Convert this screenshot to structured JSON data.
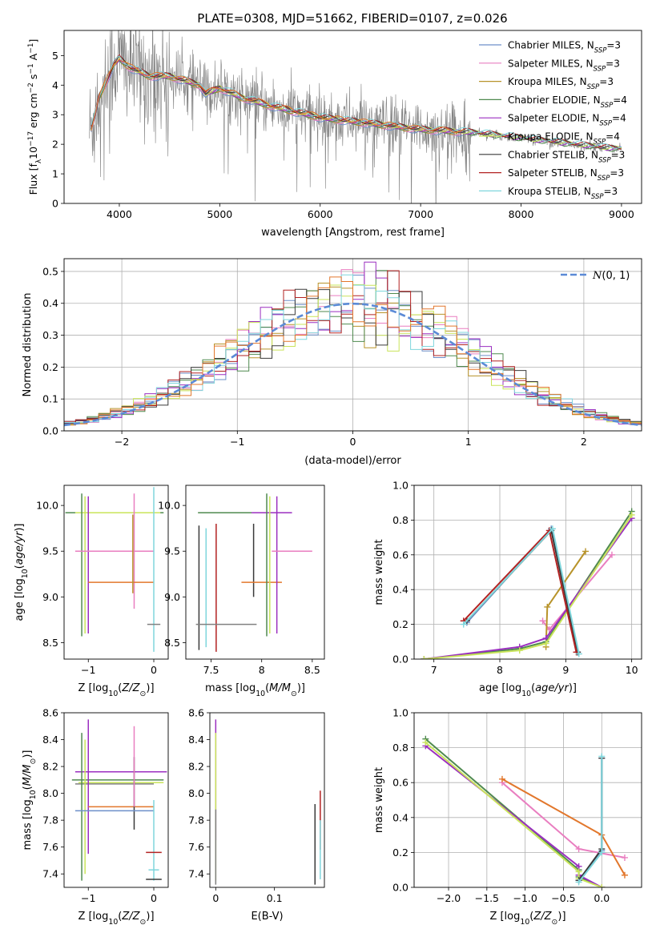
{
  "figure": {
    "title": "PLATE=0308, MJD=51662, FIBERID=0107, z=0.026"
  },
  "series_colors": {
    "Chabrier MILES": "#6d8fc9",
    "Salpeter MILES": "#e97ec0",
    "Kroupa MILES": "#b8932a",
    "Chabrier ELODIE": "#4f8a4f",
    "Salpeter ELODIE": "#9b2fc0",
    "Kroupa ELODIE": "#c9e45a",
    "Chabrier STELIB": "#3a3a3a",
    "Salpeter STELIB": "#b22222",
    "Kroupa STELIB": "#7fd6dc",
    "Kroupa ELODIE alt": "#e2772c"
  },
  "chart_data": [
    {
      "id": "spectrum",
      "type": "line",
      "xlabel": "wavelength [Angstrom, rest frame]",
      "ylabel": "Flux [f_λ 10^-17 erg cm^-2 s^-1 A^-1]",
      "xlim": [
        3450,
        9200
      ],
      "ylim": [
        0,
        5.85
      ],
      "xticks": [
        4000,
        5000,
        6000,
        7000,
        8000,
        9000
      ],
      "yticks": [
        0,
        1,
        2,
        3,
        4,
        5
      ],
      "grid": false,
      "legend_position": "top-right",
      "legend": [
        {
          "name": "Chabrier MILES",
          "sub": "SSP",
          "n": "3",
          "color": "#6d8fc9"
        },
        {
          "name": "Salpeter MILES",
          "sub": "SSP",
          "n": "3",
          "color": "#e97ec0"
        },
        {
          "name": "Kroupa MILES",
          "sub": "SSP",
          "n": "3",
          "color": "#b8932a"
        },
        {
          "name": "Chabrier ELODIE",
          "sub": "SSP",
          "n": "4",
          "color": "#4f8a4f"
        },
        {
          "name": "Salpeter ELODIE",
          "sub": "SSP",
          "n": "4",
          "color": "#9b2fc0"
        },
        {
          "name": "Kroupa ELODIE",
          "sub": "SSP",
          "n": "4",
          "color": "#c9e45a"
        },
        {
          "name": "Chabrier STELIB",
          "sub": "SSP",
          "n": "3",
          "color": "#3a3a3a"
        },
        {
          "name": "Salpeter STELIB",
          "sub": "SSP",
          "n": "3",
          "color": "#b22222"
        },
        {
          "name": "Kroupa STELIB",
          "sub": "SSP",
          "n": "3",
          "color": "#7fd6dc"
        }
      ],
      "continuum_knots": [
        [
          3720,
          2.5
        ],
        [
          3800,
          3.6
        ],
        [
          3950,
          4.7
        ],
        [
          4000,
          4.9
        ],
        [
          4100,
          4.6
        ],
        [
          4300,
          4.3
        ],
        [
          4500,
          4.3
        ],
        [
          4800,
          4.0
        ],
        [
          4860,
          3.7
        ],
        [
          5000,
          3.9
        ],
        [
          5200,
          3.6
        ],
        [
          5500,
          3.3
        ],
        [
          6000,
          2.9
        ],
        [
          6500,
          2.7
        ],
        [
          7000,
          2.5
        ],
        [
          7500,
          2.4
        ],
        [
          8000,
          2.2
        ],
        [
          8500,
          2.0
        ],
        [
          8900,
          1.85
        ]
      ],
      "data_color": "#808080",
      "data_x_range": [
        3700,
        9000
      ]
    },
    {
      "id": "residuals",
      "type": "area",
      "xlabel": "(data-model)/error",
      "ylabel": "Normed distribution",
      "xlim": [
        -2.5,
        2.5
      ],
      "ylim": [
        0,
        0.54
      ],
      "xticks": [
        -2,
        -1,
        0,
        1,
        2
      ],
      "yticks": [
        0.0,
        0.1,
        0.2,
        0.3,
        0.4,
        0.5
      ],
      "grid": true,
      "legend_position": "top-right",
      "legend": [
        {
          "name": "N(0,1)",
          "color": "#5b8ad6",
          "style": "dashed"
        }
      ],
      "bin_width": 0.1
    },
    {
      "id": "age_vs_Z",
      "type": "scatter",
      "xlabel": "Z [log10(Z/Z⊙)]",
      "ylabel": "age  [log10(age/yr)]",
      "xlim": [
        -1.37,
        0.22
      ],
      "ylim": [
        8.32,
        10.22
      ],
      "xticks": [
        -1,
        0
      ],
      "yticks": [
        8.5,
        9.0,
        9.5,
        10.0
      ],
      "grid": false,
      "points": [
        {
          "x": -0.6,
          "y": 9.92,
          "xerr": 0.75,
          "yerr": 0,
          "color": "#4f8a4f"
        },
        {
          "x": -0.55,
          "y": 9.92,
          "xerr": 0.65,
          "yerr": 0,
          "color": "#c9e45a"
        },
        {
          "x": -1.1,
          "y": 9.35,
          "xerr": 0,
          "yerr": 0.78,
          "color": "#4f8a4f"
        },
        {
          "x": -1.05,
          "y": 9.35,
          "xerr": 0,
          "yerr": 0.75,
          "color": "#c9e45a"
        },
        {
          "x": -1.0,
          "y": 9.35,
          "xerr": 0,
          "yerr": 0.75,
          "color": "#9b2fc0"
        },
        {
          "x": -0.6,
          "y": 9.5,
          "xerr": 0.6,
          "yerr": 0,
          "color": "#e97ec0"
        },
        {
          "x": -0.3,
          "y": 9.5,
          "xerr": 0,
          "yerr": 0.63,
          "color": "#e97ec0"
        },
        {
          "x": -0.5,
          "y": 9.16,
          "xerr": 0.5,
          "yerr": 0,
          "color": "#e2772c"
        },
        {
          "x": -0.32,
          "y": 9.47,
          "xerr": 0,
          "yerr": 0.43,
          "color": "#b8932a"
        },
        {
          "x": 0.0,
          "y": 9.3,
          "xerr": 0,
          "yerr": 0.9,
          "color": "#7fd6dc"
        },
        {
          "x": 0.0,
          "y": 8.7,
          "xerr": 0.1,
          "yerr": 0,
          "color": "#808080"
        }
      ]
    },
    {
      "id": "age_vs_mass",
      "type": "scatter",
      "xlabel": "mass [log10(M/M⊙)]",
      "ylabel": "",
      "xlim": [
        7.25,
        8.62
      ],
      "ylim": [
        8.32,
        10.22
      ],
      "xticks": [
        7.5,
        8.0,
        8.5
      ],
      "yticks": [
        8.5,
        9.0,
        9.5,
        10.0
      ],
      "grid": false,
      "points": [
        {
          "x": 7.65,
          "y": 9.92,
          "xerr": 0.28,
          "yerr": 0,
          "color": "#4f8a4f"
        },
        {
          "x": 8.1,
          "y": 9.92,
          "xerr": 0.2,
          "yerr": 0,
          "color": "#9b2fc0"
        },
        {
          "x": 7.38,
          "y": 9.1,
          "xerr": 0,
          "yerr": 0.68,
          "color": "#3a3a3a"
        },
        {
          "x": 7.45,
          "y": 9.1,
          "xerr": 0,
          "yerr": 0.65,
          "color": "#7fd6dc"
        },
        {
          "x": 7.55,
          "y": 9.1,
          "xerr": 0,
          "yerr": 0.7,
          "color": "#b22222"
        },
        {
          "x": 7.65,
          "y": 8.7,
          "xerr": 0.3,
          "yerr": 0,
          "color": "#808080"
        },
        {
          "x": 7.92,
          "y": 9.4,
          "xerr": 0,
          "yerr": 0.4,
          "color": "#3a3a3a"
        },
        {
          "x": 8.0,
          "y": 9.16,
          "xerr": 0.2,
          "yerr": 0,
          "color": "#e2772c"
        },
        {
          "x": 8.05,
          "y": 9.35,
          "xerr": 0,
          "yerr": 0.78,
          "color": "#4f8a4f"
        },
        {
          "x": 8.08,
          "y": 9.35,
          "xerr": 0,
          "yerr": 0.75,
          "color": "#c9e45a"
        },
        {
          "x": 8.15,
          "y": 9.35,
          "xerr": 0,
          "yerr": 0.75,
          "color": "#9b2fc0"
        },
        {
          "x": 8.3,
          "y": 9.5,
          "xerr": 0.2,
          "yerr": 0,
          "color": "#e97ec0"
        }
      ]
    },
    {
      "id": "weight_vs_age",
      "type": "line",
      "xlabel": "age  [log10(age/yr)]",
      "ylabel": "mass weight",
      "xlim": [
        6.7,
        10.15
      ],
      "ylim": [
        0,
        1.0
      ],
      "xticks": [
        7,
        8,
        9,
        10
      ],
      "yticks": [
        0.0,
        0.2,
        0.4,
        0.6,
        0.8,
        1.0
      ],
      "grid": true,
      "series": [
        {
          "name": "Chabrier MILES",
          "color": "#6d8fc9",
          "x": [
            7.5,
            8.78,
            9.18
          ],
          "y": [
            0.21,
            0.75,
            0.04
          ]
        },
        {
          "name": "Salpeter MILES",
          "color": "#e97ec0",
          "x": [
            8.65,
            8.75,
            9.7
          ],
          "y": [
            0.22,
            0.17,
            0.6
          ]
        },
        {
          "name": "Kroupa MILES",
          "color": "#b8932a",
          "x": [
            8.7,
            8.72,
            9.3
          ],
          "y": [
            0.07,
            0.3,
            0.62
          ]
        },
        {
          "name": "Chabrier ELODIE",
          "color": "#4f8a4f",
          "x": [
            6.85,
            8.3,
            8.7,
            10.0
          ],
          "y": [
            0.0,
            0.06,
            0.1,
            0.85
          ]
        },
        {
          "name": "Salpeter ELODIE",
          "color": "#9b2fc0",
          "x": [
            6.85,
            8.3,
            8.7,
            10.0
          ],
          "y": [
            0.0,
            0.07,
            0.12,
            0.81
          ]
        },
        {
          "name": "Kroupa ELODIE",
          "color": "#c9e45a",
          "x": [
            6.85,
            8.3,
            8.7,
            10.0
          ],
          "y": [
            0.0,
            0.05,
            0.09,
            0.83
          ]
        },
        {
          "name": "Chabrier STELIB",
          "color": "#3a3a3a",
          "x": [
            7.5,
            8.78,
            9.18
          ],
          "y": [
            0.22,
            0.74,
            0.04
          ]
        },
        {
          "name": "Salpeter STELIB",
          "color": "#b22222",
          "x": [
            7.45,
            8.75,
            9.16
          ],
          "y": [
            0.22,
            0.74,
            0.04
          ]
        },
        {
          "name": "Kroupa STELIB",
          "color": "#7fd6dc",
          "x": [
            7.45,
            8.8,
            9.2
          ],
          "y": [
            0.2,
            0.75,
            0.03
          ]
        }
      ]
    },
    {
      "id": "mass_vs_Z",
      "type": "scatter",
      "xlabel": "Z [log10(Z/Z⊙)]",
      "ylabel": "mass [log10(M/M⊙)]",
      "xlim": [
        -1.37,
        0.22
      ],
      "ylim": [
        7.3,
        8.6
      ],
      "xticks": [
        -1,
        0
      ],
      "yticks": [
        7.4,
        7.6,
        7.8,
        8.0,
        8.2,
        8.4,
        8.6
      ],
      "grid": false,
      "points": [
        {
          "x": -0.5,
          "y": 8.16,
          "xerr": 0.7,
          "yerr": 0,
          "color": "#9b2fc0"
        },
        {
          "x": -0.55,
          "y": 8.1,
          "xerr": 0.7,
          "yerr": 0,
          "color": "#4f8a4f"
        },
        {
          "x": -0.5,
          "y": 8.08,
          "xerr": 0.65,
          "yerr": 0,
          "color": "#c9e45a"
        },
        {
          "x": -0.6,
          "y": 8.07,
          "xerr": 0.6,
          "yerr": 0,
          "color": "#808080"
        },
        {
          "x": -1.1,
          "y": 7.9,
          "xerr": 0,
          "yerr": 0.55,
          "color": "#4f8a4f"
        },
        {
          "x": -1.05,
          "y": 7.9,
          "xerr": 0,
          "yerr": 0.5,
          "color": "#c9e45a"
        },
        {
          "x": -1.0,
          "y": 8.05,
          "xerr": 0,
          "yerr": 0.5,
          "color": "#9b2fc0"
        },
        {
          "x": -0.5,
          "y": 7.9,
          "xerr": 0.5,
          "yerr": 0,
          "color": "#e2772c"
        },
        {
          "x": -0.3,
          "y": 8.0,
          "xerr": 0,
          "yerr": 0.27,
          "color": "#3a3a3a"
        },
        {
          "x": -0.3,
          "y": 8.2,
          "xerr": 0,
          "yerr": 0.3,
          "color": "#e97ec0"
        },
        {
          "x": -0.6,
          "y": 7.87,
          "xerr": 0.6,
          "yerr": 0,
          "color": "#6d8fc9"
        },
        {
          "x": 0.0,
          "y": 7.65,
          "xerr": 0,
          "yerr": 0.3,
          "color": "#7fd6dc"
        },
        {
          "x": 0.0,
          "y": 7.56,
          "xerr": 0.12,
          "yerr": 0,
          "color": "#b22222"
        },
        {
          "x": 0.0,
          "y": 7.43,
          "xerr": 0.08,
          "yerr": 0,
          "color": "#7fd6dc"
        },
        {
          "x": 0.0,
          "y": 7.36,
          "xerr": 0.12,
          "yerr": 0,
          "color": "#3a3a3a"
        }
      ]
    },
    {
      "id": "mass_vs_EBV",
      "type": "scatter",
      "xlabel": "E(B-V)",
      "ylabel": "",
      "xlim": [
        -0.01,
        0.185
      ],
      "ylim": [
        7.3,
        8.6
      ],
      "xticks": [
        0.0,
        0.1
      ],
      "yticks": [
        7.4,
        7.6,
        7.8,
        8.0,
        8.2,
        8.4,
        8.6
      ],
      "grid": false,
      "points": [
        {
          "x": 0.0,
          "y": 8.1,
          "xerr": 0,
          "yerr": 0.45,
          "color": "#9b2fc0"
        },
        {
          "x": 0.0,
          "y": 7.9,
          "xerr": 0,
          "yerr": 0.55,
          "color": "#c9e45a"
        },
        {
          "x": 0.0,
          "y": 7.6,
          "xerr": 0,
          "yerr": 0.28,
          "color": "#808080"
        },
        {
          "x": 0.169,
          "y": 7.62,
          "xerr": 0,
          "yerr": 0.3,
          "color": "#3a3a3a"
        },
        {
          "x": 0.178,
          "y": 7.8,
          "xerr": 0,
          "yerr": 0.22,
          "color": "#b22222"
        },
        {
          "x": 0.178,
          "y": 7.58,
          "xerr": 0,
          "yerr": 0.22,
          "color": "#7fd6dc"
        }
      ]
    },
    {
      "id": "weight_vs_Z",
      "type": "line",
      "xlabel": "Z [log10(Z/Z⊙)]",
      "ylabel": "mass weight",
      "xlim": [
        -2.45,
        0.52
      ],
      "ylim": [
        0,
        1.0
      ],
      "xticks": [
        -2.0,
        -1.5,
        -1.0,
        -0.5,
        0.0
      ],
      "yticks": [
        0.0,
        0.2,
        0.4,
        0.6,
        0.8,
        1.0
      ],
      "grid": true,
      "series": [
        {
          "name": "Chabrier MILES",
          "color": "#6d8fc9",
          "x": [
            -0.3,
            0.0,
            0.0
          ],
          "y": [
            0.04,
            0.21,
            0.74
          ]
        },
        {
          "name": "Salpeter MILES",
          "color": "#e97ec0",
          "x": [
            -1.3,
            -0.3,
            0.3
          ],
          "y": [
            0.6,
            0.22,
            0.17
          ]
        },
        {
          "name": "Kroupa MILES",
          "color": "#e2772c",
          "x": [
            -1.3,
            0.0,
            0.3
          ],
          "y": [
            0.62,
            0.3,
            0.07
          ]
        },
        {
          "name": "Chabrier ELODIE",
          "color": "#4f8a4f",
          "x": [
            -2.3,
            -0.3,
            -0.3,
            0.0
          ],
          "y": [
            0.85,
            0.1,
            0.06,
            0.0
          ]
        },
        {
          "name": "Salpeter ELODIE",
          "color": "#9b2fc0",
          "x": [
            -2.3,
            -0.3,
            -0.3,
            0.0
          ],
          "y": [
            0.81,
            0.12,
            0.07,
            0.0
          ]
        },
        {
          "name": "Kroupa ELODIE",
          "color": "#c9e45a",
          "x": [
            -2.3,
            -0.3,
            -0.3,
            0.0
          ],
          "y": [
            0.83,
            0.09,
            0.05,
            0.0
          ]
        },
        {
          "name": "Chabrier STELIB",
          "color": "#3a3a3a",
          "x": [
            -0.3,
            0.0,
            0.0
          ],
          "y": [
            0.04,
            0.22,
            0.74
          ]
        },
        {
          "name": "Kroupa STELIB",
          "color": "#7fd6dc",
          "x": [
            -0.3,
            0.0,
            0.0
          ],
          "y": [
            0.03,
            0.2,
            0.75
          ]
        }
      ]
    }
  ]
}
